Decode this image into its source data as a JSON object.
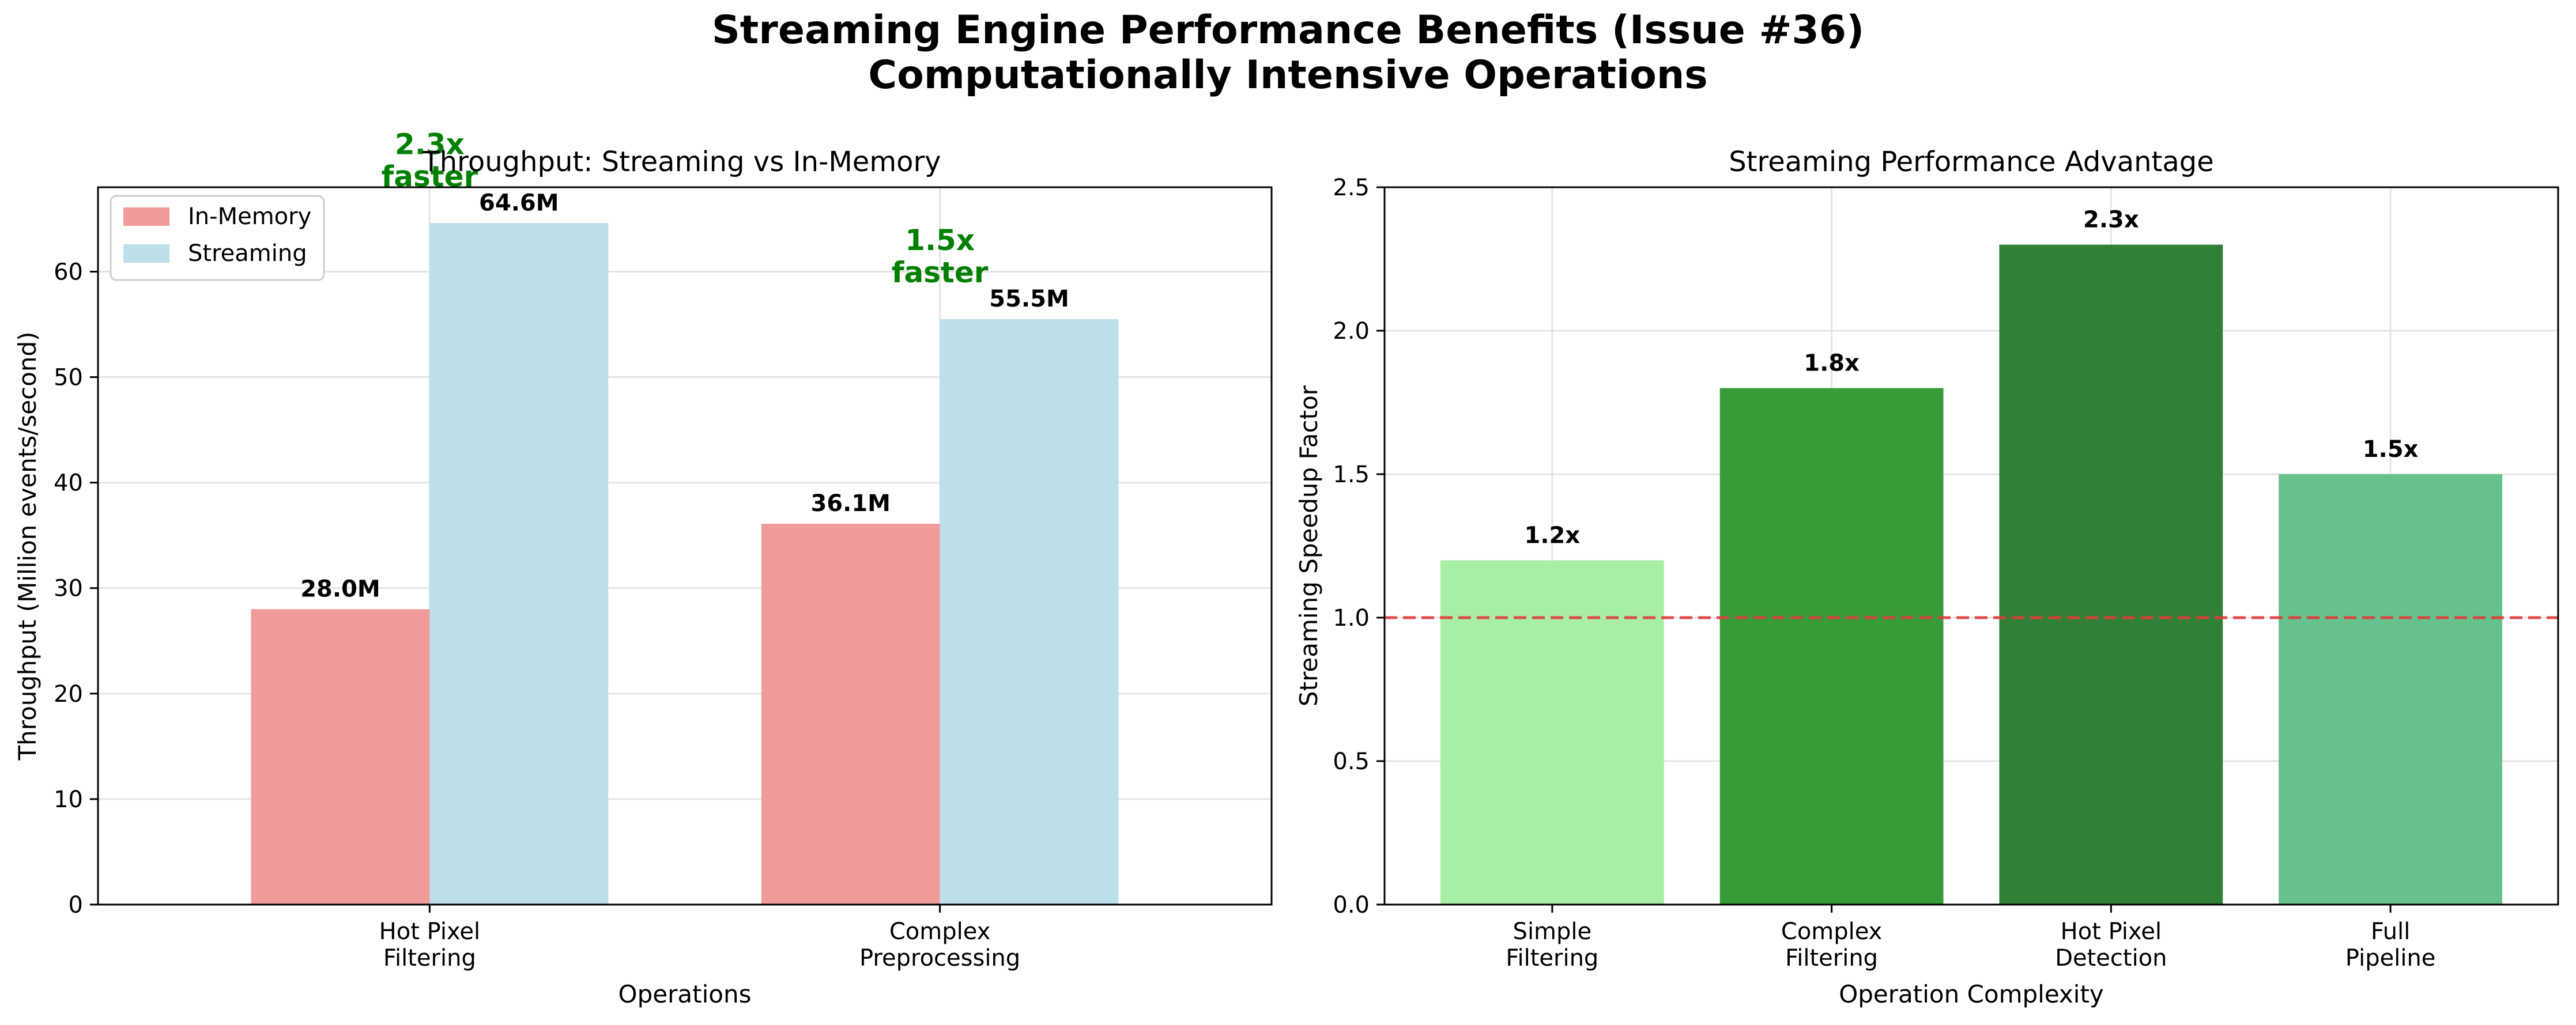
{
  "figure": {
    "title_line1": "Streaming Engine Performance Benefits (Issue #36)",
    "title_line2": "Computationally Intensive Operations"
  },
  "colors": {
    "in_memory": "#f09a9a",
    "streaming": "#bcdfea",
    "annotation": "#008000",
    "reference_line": "#e03c3c",
    "speedup_bars": [
      "#a6efa3",
      "#339933",
      "#2e7d32",
      "#63c08b"
    ]
  },
  "chart_data": [
    {
      "type": "bar",
      "title": "Throughput: Streaming vs In-Memory",
      "xlabel": "Operations",
      "ylabel": "Throughput (Million events/second)",
      "categories": [
        "Hot Pixel\nFiltering",
        "Complex\nPreprocessing"
      ],
      "series": [
        {
          "name": "In-Memory",
          "values": [
            28.0,
            36.1
          ],
          "labels": [
            "28.0M",
            "36.1M"
          ]
        },
        {
          "name": "Streaming",
          "values": [
            64.6,
            55.5
          ],
          "labels": [
            "64.6M",
            "55.5M"
          ]
        }
      ],
      "annotations": [
        "2.3x\nfaster",
        "1.5x\nfaster"
      ],
      "ylim": [
        0,
        68
      ],
      "yticks": [
        0,
        10,
        20,
        30,
        40,
        50,
        60
      ],
      "grid": true,
      "legend": "top-left"
    },
    {
      "type": "bar",
      "title": "Streaming Performance Advantage",
      "xlabel": "Operation Complexity",
      "ylabel": "Streaming Speedup Factor",
      "categories": [
        "Simple\nFiltering",
        "Complex\nFiltering",
        "Hot Pixel\nDetection",
        "Full\nPipeline"
      ],
      "values": [
        1.2,
        1.8,
        2.3,
        1.5
      ],
      "labels": [
        "1.2x",
        "1.8x",
        "2.3x",
        "1.5x"
      ],
      "reference_line": 1.0,
      "ylim": [
        0,
        2.5
      ],
      "yticks": [
        "0.0",
        "0.5",
        "1.0",
        "1.5",
        "2.0",
        "2.5"
      ],
      "grid": true
    }
  ]
}
